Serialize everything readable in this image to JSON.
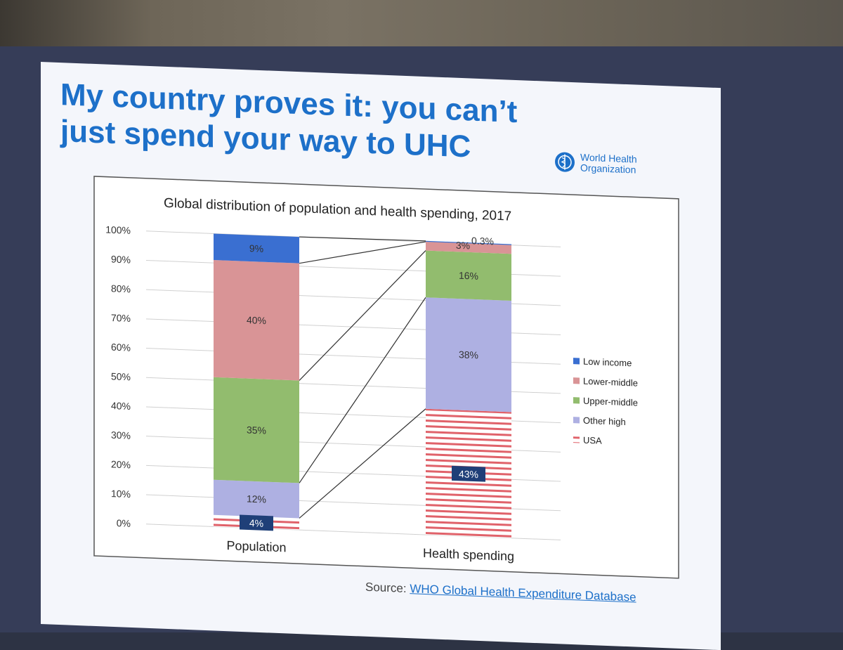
{
  "slide": {
    "title_line1": "My country proves it: you can’t",
    "title_line2": "just spend your way to UHC",
    "logo_text": "World Health Organization",
    "source_prefix": "Source:",
    "source_link": "WHO Global Health Expenditure Database"
  },
  "colors": {
    "title": "#1d70c9",
    "low_income": "#3a6fd1",
    "lower_middle": "#d99496",
    "upper_middle": "#92bc6e",
    "other_high": "#aeb0e2",
    "usa_stripe_red": "#e0626a",
    "usa_stripe_white": "#ffffff"
  },
  "chart_data": {
    "type": "bar",
    "stacked": true,
    "title": "Global distribution of population and health spending, 2017",
    "categories": [
      "Population",
      "Health spending"
    ],
    "series": [
      {
        "name": "USA",
        "values": [
          4,
          43
        ],
        "labels": [
          "4%",
          "43%"
        ],
        "pattern": "red-white-stripes"
      },
      {
        "name": "Other high",
        "values": [
          12,
          38
        ],
        "labels": [
          "12%",
          "38%"
        ]
      },
      {
        "name": "Upper-middle",
        "values": [
          35,
          16
        ],
        "labels": [
          "35%",
          "16%"
        ]
      },
      {
        "name": "Lower-middle",
        "values": [
          40,
          3
        ],
        "labels": [
          "40%",
          "3%"
        ]
      },
      {
        "name": "Low income",
        "values": [
          9,
          0.3
        ],
        "labels": [
          "9%",
          "0.3%"
        ]
      }
    ],
    "y_ticks": [
      "0%",
      "10%",
      "20%",
      "30%",
      "40%",
      "50%",
      "60%",
      "70%",
      "80%",
      "90%",
      "100%"
    ],
    "ylim": [
      0,
      100
    ],
    "legend": [
      "Low income",
      "Lower-middle",
      "Upper-middle",
      "Other high",
      "USA"
    ],
    "legend_position": "right",
    "grid": true,
    "connector_lines": true
  }
}
